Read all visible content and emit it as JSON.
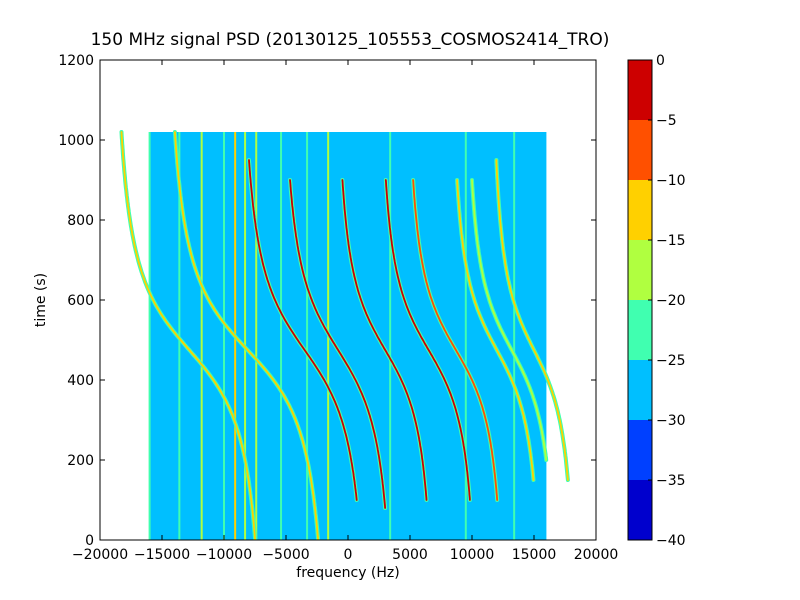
{
  "chart_data": {
    "type": "heatmap",
    "title": "150 MHz signal PSD (20130125_105553_COSMOS2414_TRO)",
    "xlabel": "frequency (Hz)",
    "ylabel": "time (s)",
    "xlim": [
      -20000,
      20000
    ],
    "ylim": [
      0,
      1200
    ],
    "x_ticks": [
      -20000,
      -15000,
      -10000,
      -5000,
      0,
      5000,
      10000,
      15000,
      20000
    ],
    "x_tick_labels": [
      "−20000",
      "−15000",
      "−10000",
      "−5000",
      "0",
      "5000",
      "10000",
      "15000",
      "20000"
    ],
    "y_ticks": [
      0,
      200,
      400,
      600,
      800,
      1000,
      1200
    ],
    "y_tick_labels": [
      "0",
      "200",
      "400",
      "600",
      "800",
      "1000",
      "1200"
    ],
    "data_extent": {
      "freq_min": -16000,
      "freq_max": 16000,
      "time_min": 0,
      "time_max": 1020
    },
    "background_level": -27.5,
    "colorbar": {
      "levels": [
        -40,
        -35,
        -30,
        -25,
        -20,
        -15,
        -10,
        -5,
        0
      ],
      "tick_labels": [
        "−40",
        "−35",
        "−30",
        "−25",
        "−20",
        "−15",
        "−10",
        "−5",
        "0"
      ],
      "colors": [
        "#0000cd",
        "#0040ff",
        "#00bfff",
        "#40ffb0",
        "#b0ff40",
        "#ffd000",
        "#ff5000",
        "#cd0000"
      ]
    },
    "vertical_lines": [
      {
        "freq": -16000,
        "level": -22
      },
      {
        "freq": -13600,
        "level": -22
      },
      {
        "freq": -11800,
        "level": -18
      },
      {
        "freq": -10000,
        "level": -22
      },
      {
        "freq": -9100,
        "level": -12
      },
      {
        "freq": -8300,
        "level": -18
      },
      {
        "freq": -7400,
        "level": -20
      },
      {
        "freq": -5400,
        "level": -22
      },
      {
        "freq": -3300,
        "level": -22
      },
      {
        "freq": -1600,
        "level": -18
      },
      {
        "freq": 3400,
        "level": -22
      },
      {
        "freq": 9500,
        "level": -22
      },
      {
        "freq": 13400,
        "level": -22
      }
    ],
    "tracks": [
      {
        "name": "",
        "center_freq": -12800,
        "center_time": 475,
        "amplitude": 4200,
        "time_scale": 150,
        "t_start": 0,
        "t_end": 1020,
        "level": -15
      },
      {
        "name": "",
        "center_freq": -8100,
        "center_time": 475,
        "amplitude": 4500,
        "time_scale": 150,
        "t_start": 0,
        "t_end": 1020,
        "level": -15
      },
      {
        "name": "",
        "center_freq": -3500,
        "center_time": 475,
        "amplitude": 3600,
        "time_scale": 160,
        "t_start": 100,
        "t_end": 950,
        "level": -5
      },
      {
        "name": "",
        "center_freq": -800,
        "center_time": 475,
        "amplitude": 3200,
        "time_scale": 160,
        "t_start": 80,
        "t_end": 900,
        "level": -5
      },
      {
        "name": "",
        "center_freq": 3000,
        "center_time": 475,
        "amplitude": 2800,
        "time_scale": 150,
        "t_start": 100,
        "t_end": 900,
        "level": -5
      },
      {
        "name": "",
        "center_freq": 6500,
        "center_time": 475,
        "amplitude": 2800,
        "time_scale": 150,
        "t_start": 100,
        "t_end": 900,
        "level": -5
      },
      {
        "name": "",
        "center_freq": 8700,
        "center_time": 475,
        "amplitude": 2800,
        "time_scale": 150,
        "t_start": 100,
        "t_end": 900,
        "level": -10
      },
      {
        "name": "",
        "center_freq": 12000,
        "center_time": 475,
        "amplitude": 2600,
        "time_scale": 150,
        "t_start": 150,
        "t_end": 900,
        "level": -15
      },
      {
        "name": "",
        "center_freq": 13200,
        "center_time": 475,
        "amplitude": 2600,
        "time_scale": 150,
        "t_start": 200,
        "t_end": 900,
        "level": -20
      },
      {
        "name": "",
        "center_freq": 15000,
        "center_time": 475,
        "amplitude": 2400,
        "time_scale": 150,
        "t_start": 150,
        "t_end": 950,
        "level": -15
      }
    ]
  }
}
